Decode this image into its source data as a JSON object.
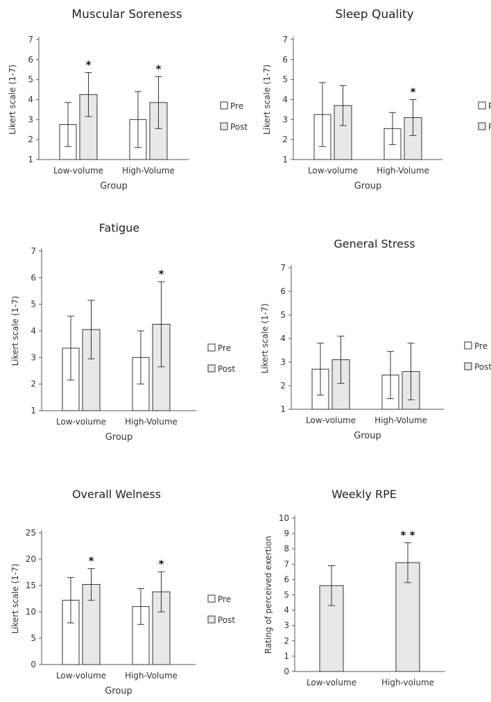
{
  "chart_data": [
    {
      "type": "bar",
      "title": "Muscular Soreness",
      "xlabel": "Group",
      "ylabel": "Likert scale (1-7)",
      "ylim": [
        1,
        7
      ],
      "yticks": [
        1,
        2,
        3,
        4,
        5,
        6,
        7
      ],
      "categories": [
        "Low-volume",
        "High-Volume"
      ],
      "series": [
        {
          "name": "Pre",
          "color": "#ffffff",
          "values": [
            2.75,
            3.0
          ],
          "errors": [
            1.1,
            1.4
          ]
        },
        {
          "name": "Post",
          "color": "#e8e8e8",
          "values": [
            4.25,
            3.85
          ],
          "errors": [
            1.1,
            1.3
          ]
        }
      ],
      "significance": [
        {
          "category": 0,
          "series": 1,
          "label": "*"
        },
        {
          "category": 1,
          "series": 1,
          "label": "*"
        }
      ],
      "legend_position": "right"
    },
    {
      "type": "bar",
      "title": "Sleep Quality",
      "xlabel": "Group",
      "ylabel": "Likert scale (1-7)",
      "ylim": [
        1,
        7
      ],
      "yticks": [
        1,
        2,
        3,
        4,
        5,
        6,
        7
      ],
      "categories": [
        "Low-volume",
        "High-Volume"
      ],
      "series": [
        {
          "name": "Pre",
          "color": "#ffffff",
          "values": [
            3.25,
            2.55
          ],
          "errors": [
            1.6,
            0.8
          ]
        },
        {
          "name": "Post",
          "color": "#e8e8e8",
          "values": [
            3.7,
            3.1
          ],
          "errors": [
            1.0,
            0.9
          ]
        }
      ],
      "significance": [
        {
          "category": 1,
          "series": 1,
          "label": "*"
        }
      ],
      "legend_position": "right"
    },
    {
      "type": "bar",
      "title": "Fatigue",
      "xlabel": "Group",
      "ylabel": "Likert scale (1-7)",
      "ylim": [
        1,
        7
      ],
      "yticks": [
        1,
        2,
        3,
        4,
        5,
        6,
        7
      ],
      "categories": [
        "Low-volume",
        "High-Volume"
      ],
      "series": [
        {
          "name": "Pre",
          "color": "#ffffff",
          "values": [
            3.35,
            3.0
          ],
          "errors": [
            1.2,
            1.0
          ]
        },
        {
          "name": "Post",
          "color": "#e8e8e8",
          "values": [
            4.05,
            4.25
          ],
          "errors": [
            1.1,
            1.6
          ]
        }
      ],
      "significance": [
        {
          "category": 1,
          "series": 1,
          "label": "*"
        }
      ],
      "legend_position": "right"
    },
    {
      "type": "bar",
      "title": "General Stress",
      "xlabel": "Group",
      "ylabel": "Likert scale (1-7)",
      "ylim": [
        1,
        7
      ],
      "yticks": [
        1,
        2,
        3,
        4,
        5,
        6,
        7
      ],
      "categories": [
        "Low-volume",
        "High-Volume"
      ],
      "series": [
        {
          "name": "Pre",
          "color": "#ffffff",
          "values": [
            2.7,
            2.45
          ],
          "errors": [
            1.1,
            1.0
          ]
        },
        {
          "name": "Post",
          "color": "#e8e8e8",
          "values": [
            3.1,
            2.6
          ],
          "errors": [
            1.0,
            1.2
          ]
        }
      ],
      "significance": [],
      "legend_position": "right"
    },
    {
      "type": "bar",
      "title": "Overall Welness",
      "xlabel": "Group",
      "ylabel": "Likert scale (1-7)",
      "ylim": [
        0,
        25
      ],
      "yticks": [
        0,
        5,
        10,
        15,
        20,
        25
      ],
      "categories": [
        "Low-volume",
        "High-Volume"
      ],
      "series": [
        {
          "name": "Pre",
          "color": "#ffffff",
          "values": [
            12.2,
            11.0
          ],
          "errors": [
            4.3,
            3.4
          ]
        },
        {
          "name": "Post",
          "color": "#e8e8e8",
          "values": [
            15.2,
            13.8
          ],
          "errors": [
            3.0,
            3.8
          ]
        }
      ],
      "significance": [
        {
          "category": 0,
          "series": 1,
          "label": "*"
        },
        {
          "category": 1,
          "series": 1,
          "label": "*"
        }
      ],
      "legend_position": "right"
    },
    {
      "type": "bar",
      "title": "Weekly RPE",
      "xlabel": "",
      "ylabel": "Rating of perceived exertion",
      "ylim": [
        0,
        10
      ],
      "yticks": [
        0,
        1,
        2,
        3,
        4,
        5,
        6,
        7,
        8,
        9,
        10
      ],
      "categories": [
        "Low-volume",
        "High-volume"
      ],
      "series": [
        {
          "color": "#e8e8e8",
          "values": [
            5.6,
            7.1
          ],
          "errors": [
            1.3,
            1.3
          ]
        }
      ],
      "significance": [
        {
          "category": 1,
          "series": 0,
          "label": "* *"
        }
      ],
      "legend_position": "none"
    }
  ]
}
